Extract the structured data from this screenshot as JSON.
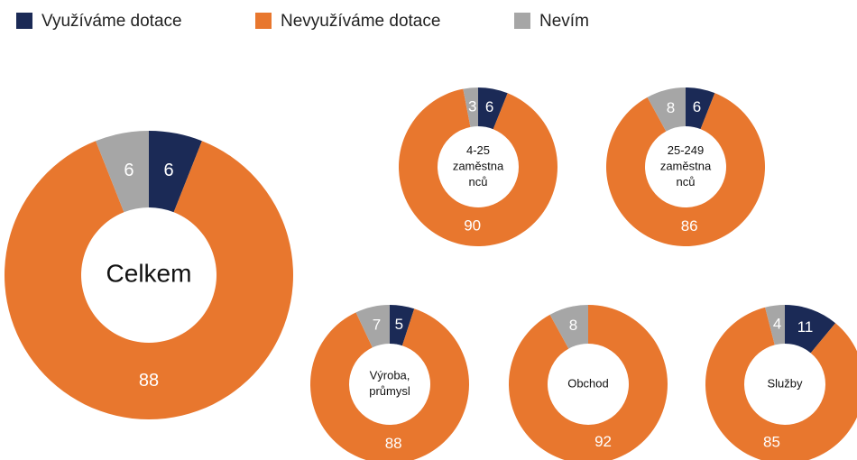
{
  "chart_data": {
    "type": "pie",
    "legend": [
      {
        "name": "Využíváme dotace",
        "color": "#1b2a56"
      },
      {
        "name": "Nevyužíváme dotace",
        "color": "#e8772e"
      },
      {
        "name": "Nevím",
        "color": "#a6a6a6"
      }
    ],
    "charts": [
      {
        "title": [
          "Celkem"
        ],
        "values": [
          6,
          88,
          6
        ]
      },
      {
        "title": [
          "4-25",
          "zaměstna",
          "nců"
        ],
        "values": [
          6,
          90,
          3
        ]
      },
      {
        "title": [
          "25-249",
          "zaměstna",
          "nců"
        ],
        "values": [
          6,
          86,
          8
        ]
      },
      {
        "title": [
          "Výroba,",
          "průmysl"
        ],
        "values": [
          5,
          88,
          7
        ]
      },
      {
        "title": [
          "Obchod"
        ],
        "values": [
          null,
          92,
          8
        ]
      },
      {
        "title": [
          "Služby"
        ],
        "values": [
          11,
          85,
          4
        ]
      }
    ]
  }
}
